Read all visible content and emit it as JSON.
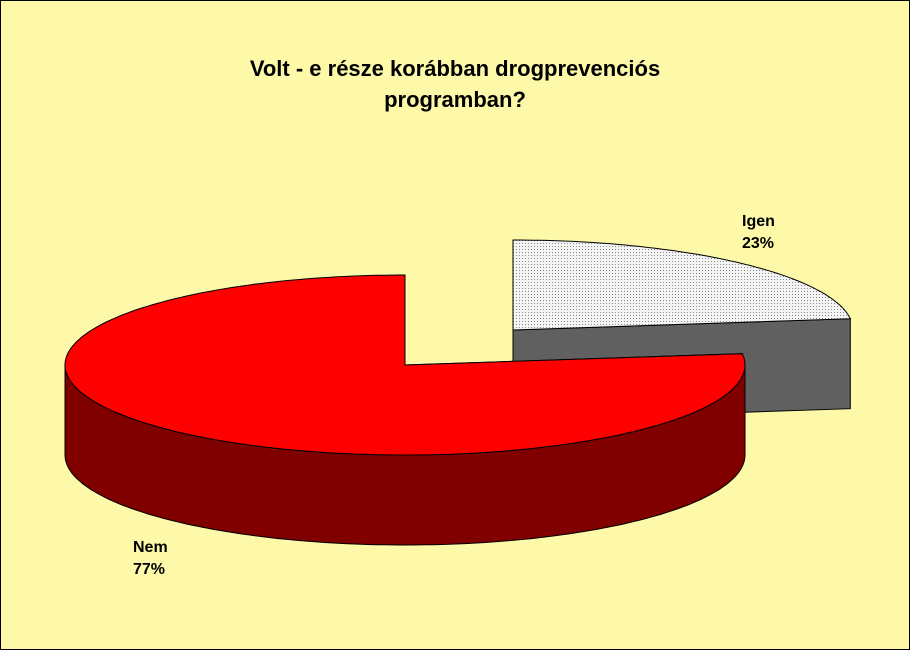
{
  "chart_data": {
    "type": "pie3d",
    "title": [
      "Volt - e része korábban drogprevenciós",
      "programban?"
    ],
    "categories": [
      "Igen",
      "Nem"
    ],
    "values": [
      23,
      77
    ],
    "value_labels": [
      "23%",
      "77%"
    ],
    "colors": [
      "#f2f2f2",
      "#ff0000"
    ],
    "side_colors": [
      "#606060",
      "#800000"
    ]
  }
}
